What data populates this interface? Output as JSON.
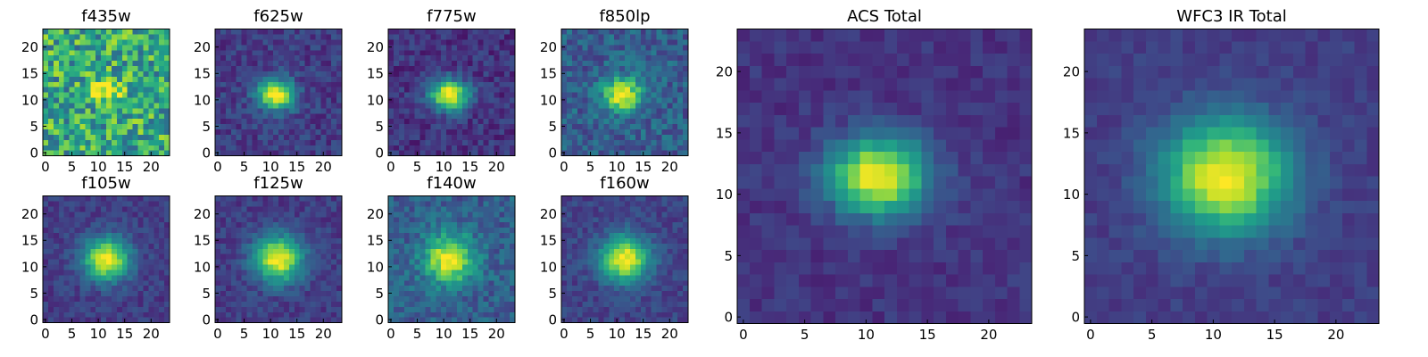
{
  "figure": {
    "colormap": "viridis",
    "colormap_stops": [
      "#440154",
      "#482878",
      "#3e4a89",
      "#31688e",
      "#26828e",
      "#1f9e89",
      "#35b779",
      "#6ece58",
      "#b5de2b",
      "#fde725"
    ]
  },
  "chart_data": [
    {
      "type": "heatmap",
      "title": "f435w",
      "x_ticks": [
        0,
        5,
        10,
        15,
        20
      ],
      "y_ticks": [
        0,
        5,
        10,
        15,
        20
      ],
      "xlim": [
        0,
        24
      ],
      "ylim": [
        0,
        24
      ],
      "grid": false,
      "colormap": "viridis",
      "image": {
        "shape": [
          24,
          24
        ],
        "peak_x": 12,
        "peak_y": 12.5,
        "sigma_x": 2.2,
        "sigma_y": 1.6,
        "background": 0.6,
        "peak": 1.0,
        "noise": 0.28
      }
    },
    {
      "type": "heatmap",
      "title": "f625w",
      "x_ticks": [
        0,
        5,
        10,
        15,
        20
      ],
      "y_ticks": [
        0,
        5,
        10,
        15,
        20
      ],
      "xlim": [
        0,
        24
      ],
      "ylim": [
        0,
        24
      ],
      "grid": false,
      "colormap": "viridis",
      "image": {
        "shape": [
          24,
          24
        ],
        "peak_x": 11.5,
        "peak_y": 11.5,
        "sigma_x": 2.5,
        "sigma_y": 2.0,
        "background": 0.18,
        "peak": 1.0,
        "noise": 0.1
      }
    },
    {
      "type": "heatmap",
      "title": "f775w",
      "x_ticks": [
        0,
        5,
        10,
        15,
        20
      ],
      "y_ticks": [
        0,
        5,
        10,
        15,
        20
      ],
      "xlim": [
        0,
        24
      ],
      "ylim": [
        0,
        24
      ],
      "grid": false,
      "colormap": "viridis",
      "image": {
        "shape": [
          24,
          24
        ],
        "peak_x": 11.5,
        "peak_y": 11.5,
        "sigma_x": 2.6,
        "sigma_y": 2.0,
        "background": 0.15,
        "peak": 1.0,
        "noise": 0.1
      }
    },
    {
      "type": "heatmap",
      "title": "f850lp",
      "x_ticks": [
        0,
        5,
        10,
        15,
        20
      ],
      "y_ticks": [
        0,
        5,
        10,
        15,
        20
      ],
      "xlim": [
        0,
        24
      ],
      "ylim": [
        0,
        24
      ],
      "grid": false,
      "colormap": "viridis",
      "image": {
        "shape": [
          24,
          24
        ],
        "peak_x": 11.5,
        "peak_y": 11.5,
        "sigma_x": 2.6,
        "sigma_y": 2.2,
        "background": 0.3,
        "peak": 1.0,
        "noise": 0.14
      }
    },
    {
      "type": "heatmap",
      "title": "f105w",
      "x_ticks": [
        0,
        5,
        10,
        15,
        20
      ],
      "y_ticks": [
        0,
        5,
        10,
        15,
        20
      ],
      "xlim": [
        0,
        24
      ],
      "ylim": [
        0,
        24
      ],
      "grid": false,
      "colormap": "viridis",
      "image": {
        "shape": [
          24,
          24
        ],
        "peak_x": 12,
        "peak_y": 12,
        "sigma_x": 3.0,
        "sigma_y": 2.8,
        "background": 0.18,
        "peak": 1.0,
        "noise": 0.08
      }
    },
    {
      "type": "heatmap",
      "title": "f125w",
      "x_ticks": [
        0,
        5,
        10,
        15,
        20
      ],
      "y_ticks": [
        0,
        5,
        10,
        15,
        20
      ],
      "xlim": [
        0,
        24
      ],
      "ylim": [
        0,
        24
      ],
      "grid": false,
      "colormap": "viridis",
      "image": {
        "shape": [
          24,
          24
        ],
        "peak_x": 12,
        "peak_y": 12,
        "sigma_x": 3.2,
        "sigma_y": 3.0,
        "background": 0.18,
        "peak": 1.0,
        "noise": 0.08
      }
    },
    {
      "type": "heatmap",
      "title": "f140w",
      "x_ticks": [
        0,
        5,
        10,
        15,
        20
      ],
      "y_ticks": [
        0,
        5,
        10,
        15,
        20
      ],
      "xlim": [
        0,
        24
      ],
      "ylim": [
        0,
        24
      ],
      "grid": false,
      "colormap": "viridis",
      "image": {
        "shape": [
          24,
          24
        ],
        "peak_x": 11.5,
        "peak_y": 12,
        "sigma_x": 3.2,
        "sigma_y": 3.2,
        "background": 0.3,
        "peak": 1.0,
        "noise": 0.12
      }
    },
    {
      "type": "heatmap",
      "title": "f160w",
      "x_ticks": [
        0,
        5,
        10,
        15,
        20
      ],
      "y_ticks": [
        0,
        5,
        10,
        15,
        20
      ],
      "xlim": [
        0,
        24
      ],
      "ylim": [
        0,
        24
      ],
      "grid": false,
      "colormap": "viridis",
      "image": {
        "shape": [
          24,
          24
        ],
        "peak_x": 12,
        "peak_y": 12,
        "sigma_x": 3.2,
        "sigma_y": 3.0,
        "background": 0.2,
        "peak": 1.0,
        "noise": 0.08
      }
    },
    {
      "type": "heatmap",
      "title": "ACS Total",
      "x_ticks": [
        0,
        5,
        10,
        15,
        20
      ],
      "y_ticks": [
        0,
        5,
        10,
        15,
        20
      ],
      "xlim": [
        0,
        24
      ],
      "ylim": [
        0,
        24
      ],
      "grid": false,
      "colormap": "viridis",
      "image": {
        "shape": [
          24,
          24
        ],
        "peak_x": 11.5,
        "peak_y": 12,
        "sigma_x": 2.8,
        "sigma_y": 2.2,
        "background": 0.15,
        "peak": 1.0,
        "noise": 0.06
      }
    },
    {
      "type": "heatmap",
      "title": "WFC3 IR Total",
      "x_ticks": [
        0,
        5,
        10,
        15,
        20
      ],
      "y_ticks": [
        0,
        5,
        10,
        15,
        20
      ],
      "xlim": [
        0,
        24
      ],
      "ylim": [
        0,
        24
      ],
      "grid": false,
      "colormap": "viridis",
      "image": {
        "shape": [
          24,
          24
        ],
        "peak_x": 11.5,
        "peak_y": 12,
        "sigma_x": 3.6,
        "sigma_y": 3.2,
        "background": 0.18,
        "peak": 1.0,
        "noise": 0.05
      }
    }
  ]
}
